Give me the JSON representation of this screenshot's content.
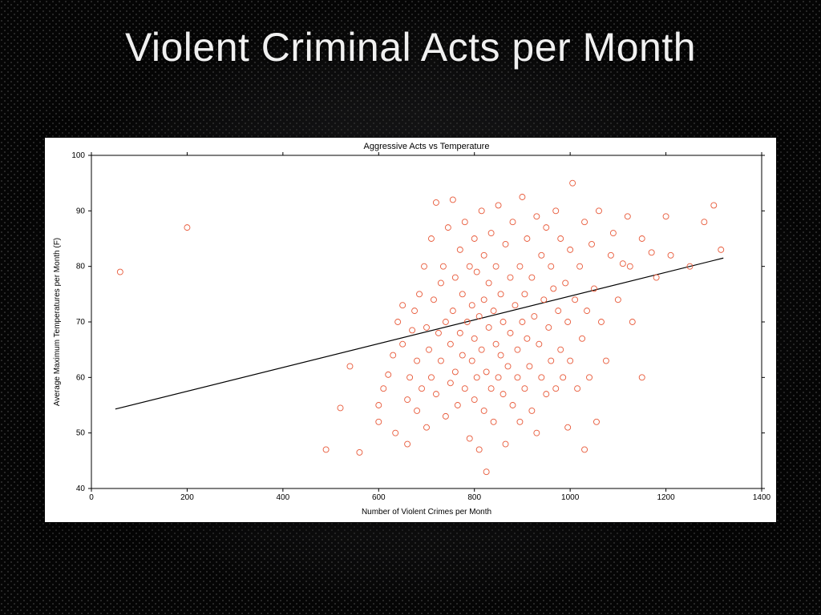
{
  "slide": {
    "title": "Violent Criminal Acts per Month",
    "title_color": "#f0f0f0",
    "title_fontsize": 50,
    "background_pattern_color": "#2a2a2a",
    "background_dark": "#0a0a0a"
  },
  "chart": {
    "type": "scatter",
    "title": "Aggressive Acts vs Temperature",
    "xlabel": "Number of Violent Crimes per Month",
    "ylabel": "Average Maximum Temperatures per Month (F)",
    "background_color": "#ffffff",
    "plot_border_color": "#000000",
    "xlim": [
      0,
      1400
    ],
    "ylim": [
      40,
      100
    ],
    "xticks": [
      0,
      200,
      400,
      600,
      800,
      1000,
      1200,
      1400
    ],
    "yticks": [
      40,
      50,
      60,
      70,
      80,
      90,
      100
    ],
    "tick_length": 4,
    "tick_fontsize": 10,
    "label_fontsize": 10,
    "title_fontsize": 11,
    "marker_style": "circle-open",
    "marker_radius": 3.5,
    "marker_color": "#e85a3a",
    "marker_stroke_width": 0.9,
    "trend_line": {
      "x1": 50,
      "y1": 54.3,
      "x2": 1320,
      "y2": 81.5,
      "color": "#000000",
      "width": 1.2
    },
    "points": [
      [
        60,
        79
      ],
      [
        200,
        87
      ],
      [
        490,
        47
      ],
      [
        520,
        54.5
      ],
      [
        540,
        62
      ],
      [
        560,
        46.5
      ],
      [
        600,
        52
      ],
      [
        600,
        55
      ],
      [
        610,
        58
      ],
      [
        620,
        60.5
      ],
      [
        630,
        64
      ],
      [
        635,
        50
      ],
      [
        640,
        70
      ],
      [
        650,
        66
      ],
      [
        650,
        73
      ],
      [
        660,
        48
      ],
      [
        660,
        56
      ],
      [
        665,
        60
      ],
      [
        670,
        68.5
      ],
      [
        675,
        72
      ],
      [
        680,
        54
      ],
      [
        680,
        63
      ],
      [
        685,
        75
      ],
      [
        690,
        58
      ],
      [
        695,
        80
      ],
      [
        700,
        69
      ],
      [
        700,
        51
      ],
      [
        705,
        65
      ],
      [
        710,
        60
      ],
      [
        710,
        85
      ],
      [
        715,
        74
      ],
      [
        720,
        57
      ],
      [
        720,
        91.5
      ],
      [
        725,
        68
      ],
      [
        730,
        63
      ],
      [
        730,
        77
      ],
      [
        735,
        80
      ],
      [
        740,
        53
      ],
      [
        740,
        70
      ],
      [
        745,
        87
      ],
      [
        750,
        59
      ],
      [
        750,
        66
      ],
      [
        755,
        72
      ],
      [
        755,
        92
      ],
      [
        760,
        61
      ],
      [
        760,
        78
      ],
      [
        765,
        55
      ],
      [
        770,
        68
      ],
      [
        770,
        83
      ],
      [
        775,
        64
      ],
      [
        775,
        75
      ],
      [
        780,
        58
      ],
      [
        780,
        88
      ],
      [
        785,
        70
      ],
      [
        790,
        49
      ],
      [
        790,
        80
      ],
      [
        795,
        63
      ],
      [
        795,
        73
      ],
      [
        800,
        56
      ],
      [
        800,
        67
      ],
      [
        800,
        85
      ],
      [
        805,
        60
      ],
      [
        805,
        79
      ],
      [
        810,
        71
      ],
      [
        810,
        47
      ],
      [
        815,
        65
      ],
      [
        815,
        90
      ],
      [
        820,
        54
      ],
      [
        820,
        74
      ],
      [
        820,
        82
      ],
      [
        825,
        61
      ],
      [
        825,
        43
      ],
      [
        830,
        69
      ],
      [
        830,
        77
      ],
      [
        835,
        58
      ],
      [
        835,
        86
      ],
      [
        840,
        52
      ],
      [
        840,
        72
      ],
      [
        845,
        66
      ],
      [
        845,
        80
      ],
      [
        850,
        60
      ],
      [
        850,
        91
      ],
      [
        855,
        64
      ],
      [
        855,
        75
      ],
      [
        860,
        57
      ],
      [
        860,
        70
      ],
      [
        865,
        84
      ],
      [
        865,
        48
      ],
      [
        870,
        62
      ],
      [
        875,
        78
      ],
      [
        875,
        68
      ],
      [
        880,
        55
      ],
      [
        880,
        88
      ],
      [
        885,
        73
      ],
      [
        890,
        65
      ],
      [
        890,
        60
      ],
      [
        895,
        80
      ],
      [
        895,
        52
      ],
      [
        900,
        70
      ],
      [
        900,
        92.5
      ],
      [
        905,
        75
      ],
      [
        905,
        58
      ],
      [
        910,
        67
      ],
      [
        910,
        85
      ],
      [
        915,
        62
      ],
      [
        920,
        78
      ],
      [
        920,
        54
      ],
      [
        925,
        71
      ],
      [
        930,
        89
      ],
      [
        930,
        50
      ],
      [
        935,
        66
      ],
      [
        940,
        82
      ],
      [
        940,
        60
      ],
      [
        945,
        74
      ],
      [
        950,
        57
      ],
      [
        950,
        87
      ],
      [
        955,
        69
      ],
      [
        960,
        63
      ],
      [
        960,
        80
      ],
      [
        965,
        76
      ],
      [
        970,
        58
      ],
      [
        970,
        90
      ],
      [
        975,
        72
      ],
      [
        980,
        65
      ],
      [
        980,
        85
      ],
      [
        985,
        60
      ],
      [
        990,
        77
      ],
      [
        995,
        70
      ],
      [
        995,
        51
      ],
      [
        1000,
        83
      ],
      [
        1000,
        63
      ],
      [
        1005,
        95
      ],
      [
        1010,
        74
      ],
      [
        1015,
        58
      ],
      [
        1020,
        80
      ],
      [
        1025,
        67
      ],
      [
        1030,
        88
      ],
      [
        1030,
        47
      ],
      [
        1035,
        72
      ],
      [
        1040,
        60
      ],
      [
        1045,
        84
      ],
      [
        1050,
        76
      ],
      [
        1055,
        52
      ],
      [
        1060,
        90
      ],
      [
        1065,
        70
      ],
      [
        1075,
        63
      ],
      [
        1085,
        82
      ],
      [
        1090,
        86
      ],
      [
        1100,
        74
      ],
      [
        1110,
        80.5
      ],
      [
        1120,
        89
      ],
      [
        1125,
        80
      ],
      [
        1130,
        70
      ],
      [
        1150,
        85
      ],
      [
        1150,
        60
      ],
      [
        1170,
        82.5
      ],
      [
        1180,
        78
      ],
      [
        1200,
        89
      ],
      [
        1210,
        82
      ],
      [
        1250,
        80
      ],
      [
        1280,
        88
      ],
      [
        1300,
        91
      ],
      [
        1315,
        83
      ]
    ]
  }
}
